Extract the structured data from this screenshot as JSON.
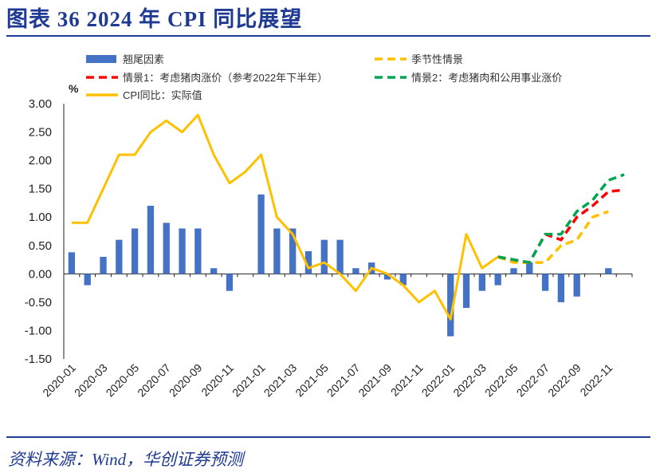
{
  "figure_title": "图表 36   2024 年 CPI 同比展望",
  "source": "资料来源：Wind，华创证券预测",
  "chart_data": {
    "type": "bar",
    "ylabel": "%",
    "ylim": [
      -1.5,
      3.0
    ],
    "yticks": [
      -1.5,
      -1.0,
      -0.5,
      0.0,
      0.5,
      1.0,
      1.5,
      2.0,
      2.5,
      3.0
    ],
    "ytick_labels": [
      "-1.50",
      "-1.00",
      "-0.50",
      "0.00",
      "0.50",
      "1.00",
      "1.50",
      "2.00",
      "2.50",
      "3.00"
    ],
    "categories": [
      "2020-01",
      "2020-02",
      "2020-03",
      "2020-04",
      "2020-05",
      "2020-06",
      "2020-07",
      "2020-08",
      "2020-09",
      "2020-10",
      "2020-11",
      "2020-12",
      "2021-01",
      "2021-02",
      "2021-03",
      "2021-04",
      "2021-05",
      "2021-06",
      "2021-07",
      "2021-08",
      "2021-09",
      "2021-10",
      "2021-11",
      "2021-12",
      "2022-01",
      "2022-02",
      "2022-03",
      "2022-04",
      "2022-05",
      "2022-06",
      "2022-07",
      "2022-08",
      "2022-09",
      "2022-10",
      "2022-11",
      "2022-12"
    ],
    "xtick_labels": [
      "2020-01",
      "2020-03",
      "2020-05",
      "2020-07",
      "2020-09",
      "2020-11",
      "2021-01",
      "2021-03",
      "2021-05",
      "2021-07",
      "2021-09",
      "2021-11",
      "2022-01",
      "2022-03",
      "2022-05",
      "2022-07",
      "2022-09",
      "2022-11"
    ],
    "legend_position": "top",
    "grid": false,
    "series": [
      {
        "name": "翘尾因素",
        "kind": "bar",
        "color": "#4472c4",
        "values": [
          0.38,
          -0.2,
          0.3,
          0.6,
          0.8,
          1.2,
          0.9,
          0.8,
          0.8,
          0.1,
          -0.3,
          null,
          1.4,
          0.8,
          0.8,
          0.4,
          0.6,
          0.6,
          0.1,
          0.2,
          -0.1,
          -0.2,
          null,
          null,
          -1.1,
          -0.6,
          -0.3,
          -0.2,
          0.1,
          0.2,
          -0.3,
          -0.5,
          -0.4,
          null,
          0.1,
          null
        ]
      },
      {
        "name": "季节性情景",
        "kind": "dashed-line",
        "color": "#ffc000",
        "values": [
          null,
          null,
          null,
          null,
          null,
          null,
          null,
          null,
          null,
          null,
          null,
          null,
          null,
          null,
          null,
          null,
          null,
          null,
          null,
          null,
          null,
          null,
          null,
          null,
          null,
          null,
          null,
          0.3,
          0.2,
          0.2,
          0.2,
          0.5,
          0.6,
          1.0,
          1.1,
          null
        ]
      },
      {
        "name": "情景1：考虑猪肉涨价（参考2022年下半年）",
        "kind": "dashed-line",
        "color": "#ff0000",
        "values": [
          null,
          null,
          null,
          null,
          null,
          null,
          null,
          null,
          null,
          null,
          null,
          null,
          null,
          null,
          null,
          null,
          null,
          null,
          null,
          null,
          null,
          null,
          null,
          null,
          null,
          null,
          null,
          0.3,
          0.25,
          0.2,
          0.7,
          0.6,
          1.0,
          1.2,
          1.45,
          1.48
        ]
      },
      {
        "name": "情景2：考虑猪肉和公用事业涨价",
        "kind": "dashed-line",
        "color": "#00a550",
        "values": [
          null,
          null,
          null,
          null,
          null,
          null,
          null,
          null,
          null,
          null,
          null,
          null,
          null,
          null,
          null,
          null,
          null,
          null,
          null,
          null,
          null,
          null,
          null,
          null,
          null,
          null,
          null,
          0.3,
          0.25,
          0.2,
          0.7,
          0.7,
          1.1,
          1.3,
          1.65,
          1.75
        ]
      },
      {
        "name": "CPI同比：实际值",
        "kind": "line",
        "color": "#ffc000",
        "values": [
          0.9,
          0.9,
          1.5,
          2.1,
          2.1,
          2.5,
          2.7,
          2.5,
          2.8,
          2.1,
          1.6,
          1.8,
          2.1,
          1.0,
          0.7,
          0.1,
          0.2,
          0.0,
          -0.3,
          0.1,
          0.0,
          -0.2,
          -0.5,
          -0.3,
          -0.8,
          0.7,
          0.1,
          0.3,
          null,
          null,
          null,
          null,
          null,
          null,
          null,
          null
        ]
      }
    ]
  }
}
